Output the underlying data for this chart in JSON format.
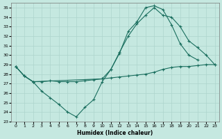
{
  "xlabel": "Humidex (Indice chaleur)",
  "bg_color": "#c5e8e0",
  "grid_color": "#aed4cc",
  "line_color": "#1a6e5e",
  "xlim": [
    -0.5,
    23.5
  ],
  "ylim": [
    23,
    35.5
  ],
  "xticks": [
    0,
    1,
    2,
    3,
    4,
    5,
    6,
    7,
    8,
    9,
    10,
    11,
    12,
    13,
    14,
    15,
    16,
    17,
    18,
    19,
    20,
    21,
    22,
    23
  ],
  "yticks": [
    23,
    24,
    25,
    26,
    27,
    28,
    29,
    30,
    31,
    32,
    33,
    34,
    35
  ],
  "s1x": [
    0,
    1,
    2,
    3,
    4,
    5,
    6,
    7,
    8,
    9,
    10,
    11,
    12,
    13,
    14,
    15,
    16,
    17,
    18,
    19,
    20,
    21,
    22,
    23
  ],
  "s1y": [
    28.8,
    27.8,
    27.2,
    27.2,
    27.3,
    27.2,
    27.2,
    27.2,
    27.3,
    27.4,
    27.5,
    27.6,
    27.7,
    27.8,
    27.9,
    28.0,
    28.2,
    28.5,
    28.7,
    28.8,
    28.8,
    28.9,
    29.0,
    29.0
  ],
  "s2x": [
    0,
    1,
    2,
    3,
    4,
    5,
    6,
    7,
    8,
    9,
    10,
    11,
    12,
    13,
    14,
    15,
    16,
    17,
    18,
    19,
    20,
    21
  ],
  "s2y": [
    28.8,
    27.8,
    27.2,
    26.2,
    25.5,
    24.8,
    24.0,
    23.5,
    24.5,
    25.3,
    27.2,
    28.5,
    30.2,
    32.5,
    33.5,
    35.0,
    35.2,
    34.8,
    33.2,
    31.2,
    30.0,
    29.5
  ],
  "s3x": [
    0,
    1,
    2,
    10,
    11,
    12,
    13,
    14,
    15,
    16,
    17,
    18,
    19,
    20,
    21,
    22,
    23
  ],
  "s3y": [
    28.8,
    27.8,
    27.2,
    27.5,
    28.5,
    30.3,
    32.0,
    33.3,
    34.2,
    35.0,
    34.2,
    34.0,
    33.0,
    31.5,
    30.8,
    30.0,
    29.0
  ]
}
